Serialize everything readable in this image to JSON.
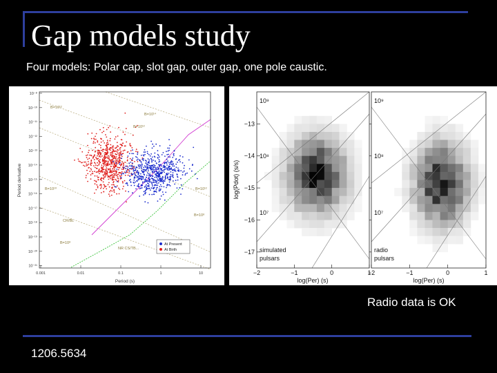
{
  "slide": {
    "title": "Gap models study",
    "subtitle": "Four models: Polar cap, slot gap, outer gap, one pole caustic.",
    "radio_note": "Radio data is OK",
    "footer": "1206.5634"
  },
  "colors": {
    "background": "#000000",
    "accent_line": "#2e3f9e",
    "red_points": "#e0201e",
    "blue_points": "#1a2bcc",
    "magenta_line": "#d13bd1",
    "green_line": "#3cc43c",
    "tan_line": "#b5a97a"
  },
  "chart_data": [
    {
      "type": "scatter",
      "xlabel": "Period (s)",
      "ylabel": "Period derivative",
      "x_scale": "log",
      "y_scale": "log",
      "x_tick_labels": [
        "0.001",
        "0.01",
        "0.1",
        "1",
        "10"
      ],
      "y_tick_labels": [
        "10⁻⁸",
        "10⁻¹⁰",
        "10⁻¹¹",
        "10⁻¹²",
        "10⁻¹³",
        "10⁻¹⁴",
        "10⁻¹⁵",
        "10⁻¹⁶",
        "10⁻¹⁷",
        "10⁻¹⁸",
        "10⁻¹⁹",
        "10⁻²⁰",
        "10⁻²¹"
      ],
      "annotations": [
        "B=10¹²",
        "B=10¹⁴",
        "B=10¹⁰",
        "B=10¹²",
        "B=10⁸",
        "B=10⁸",
        "CR/BL",
        "NR CS/TB...",
        "B=10¹²"
      ],
      "legend": [
        "At Present",
        "At Birth"
      ],
      "series": [
        {
          "name": "At Present",
          "color": "#1a2bcc"
        },
        {
          "name": "At Birth",
          "color": "#e0201e"
        }
      ]
    },
    {
      "type": "heatmap",
      "xlabel": "log(Per) (s)",
      "ylabel": "log(Pdot) (s/s)",
      "x_range": [
        -2,
        1
      ],
      "y_range": [
        -17.5,
        -12
      ],
      "x_ticks": [
        "−2",
        "−1",
        "0",
        "1"
      ],
      "y_ticks": [
        "−13",
        "−14",
        "−15",
        "−16",
        "−17"
      ],
      "panels": [
        {
          "label_line1": "simulated",
          "label_line2": "pulsars",
          "field_labels": [
            "10⁹",
            "10⁸",
            "10⁷"
          ]
        },
        {
          "label_line1": "radio",
          "label_line2": "pulsars",
          "field_labels": [
            "10⁹",
            "10⁸",
            "10⁷"
          ]
        }
      ]
    }
  ]
}
